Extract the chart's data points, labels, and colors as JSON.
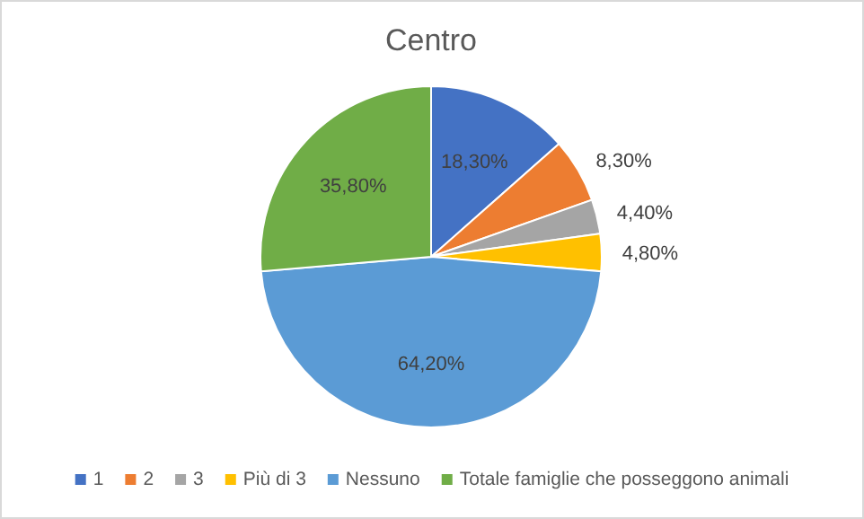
{
  "chart_data": {
    "type": "pie",
    "title": "Centro",
    "categories": [
      "1",
      "2",
      "3",
      "Più di 3",
      "Nessuno",
      "Totale famiglie che posseggono animali"
    ],
    "values": [
      18.3,
      8.3,
      4.4,
      4.8,
      64.2,
      35.8
    ],
    "value_labels": [
      "18,30%",
      "8,30%",
      "4,40%",
      "4,80%",
      "64,20%",
      "35,80%"
    ],
    "colors": [
      "#4472c4",
      "#ed7d31",
      "#a5a5a5",
      "#ffc000",
      "#5b9bd5",
      "#70ad47"
    ],
    "legend": "bottom"
  }
}
